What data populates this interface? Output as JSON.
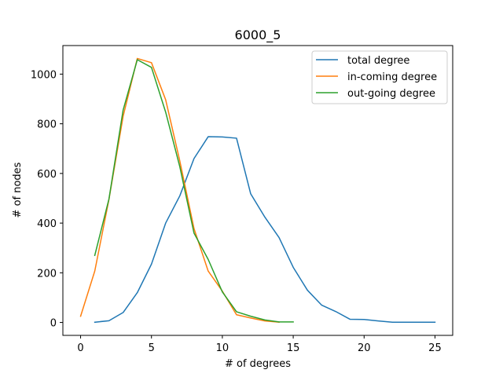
{
  "chart_data": {
    "type": "line",
    "title": "6000_5",
    "xlabel": "# of degrees",
    "ylabel": "# of nodes",
    "xlim": [
      -1.25,
      26.25
    ],
    "ylim": [
      -52,
      1115
    ],
    "xticks": [
      0,
      5,
      10,
      15,
      20,
      25
    ],
    "yticks": [
      0,
      200,
      400,
      600,
      800,
      1000
    ],
    "grid": false,
    "legend_position": "top-right",
    "series": [
      {
        "name": "total degree",
        "color": "#1f77b4",
        "x": [
          1,
          2,
          3,
          4,
          5,
          6,
          7,
          8,
          9,
          10,
          11,
          12,
          13,
          14,
          15,
          16,
          17,
          18,
          19,
          20,
          21,
          22,
          23,
          24,
          25
        ],
        "y": [
          1,
          7,
          40,
          120,
          235,
          400,
          510,
          660,
          748,
          747,
          742,
          518,
          424,
          342,
          222,
          130,
          70,
          44,
          13,
          12,
          6,
          1,
          1,
          1,
          1
        ]
      },
      {
        "name": "in-coming degree",
        "color": "#ff7f0e",
        "x": [
          0,
          1,
          2,
          3,
          4,
          5,
          6,
          7,
          8,
          9,
          10,
          11,
          12,
          13,
          14
        ],
        "y": [
          25,
          207,
          495,
          830,
          1063,
          1046,
          897,
          650,
          378,
          207,
          126,
          31,
          18,
          6,
          1
        ]
      },
      {
        "name": "out-going degree",
        "color": "#2ca02c",
        "x": [
          1,
          2,
          3,
          4,
          5,
          6,
          7,
          8,
          9,
          10,
          11,
          12,
          13,
          14,
          15
        ],
        "y": [
          270,
          497,
          855,
          1058,
          1027,
          847,
          627,
          360,
          254,
          123,
          43,
          25,
          10,
          2,
          2
        ]
      }
    ]
  }
}
